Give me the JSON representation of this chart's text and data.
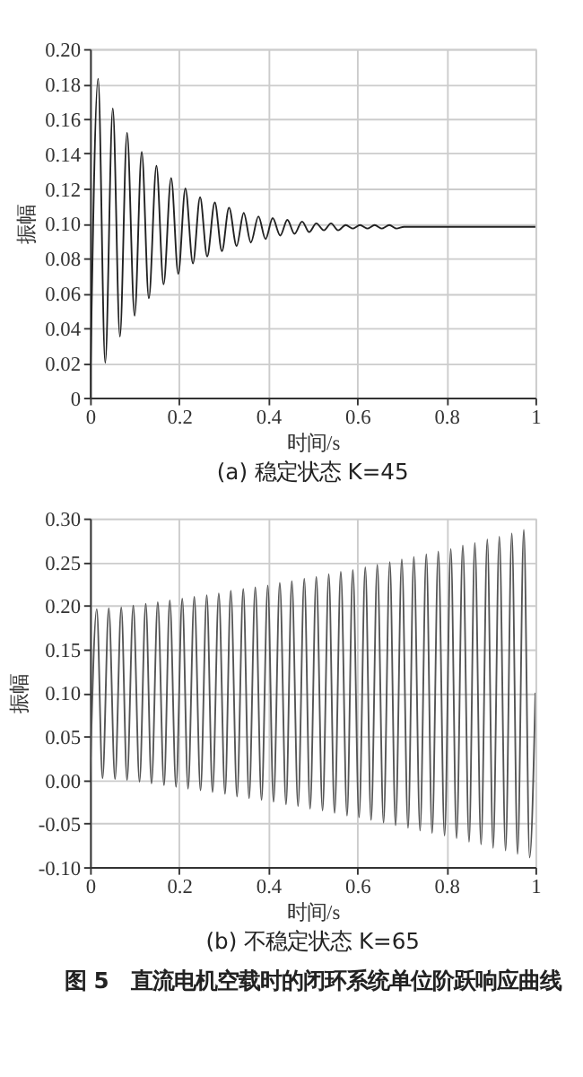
{
  "chart_data": [
    {
      "type": "line",
      "title": "(a) 稳定状态 K=45",
      "xlabel": "时间/s",
      "ylabel": "振幅",
      "grid": true,
      "xlim": [
        0,
        1
      ],
      "xticks": [
        0,
        0.2,
        0.4,
        0.6,
        0.8,
        1
      ],
      "ylim": [
        0,
        0.2
      ],
      "yticks": [
        0,
        0.02,
        0.04,
        0.06,
        0.08,
        {
          "value": 0.1,
          "label": "0.10"
        },
        0.12,
        0.14,
        0.16,
        0.18,
        {
          "value": 0.2,
          "label": "0.20"
        }
      ],
      "series": [
        {
          "color": "#222222",
          "x": [
            0,
            0.018,
            0.034,
            0.051,
            0.067,
            0.083,
            0.1,
            0.116,
            0.132,
            0.149,
            0.165,
            0.182,
            0.198,
            0.214,
            0.231,
            0.247,
            0.263,
            0.28,
            0.296,
            0.312,
            0.329,
            0.345,
            0.361,
            0.378,
            0.394,
            0.41,
            0.427,
            0.443,
            0.459,
            0.476,
            0.492,
            0.508,
            0.525,
            0.541,
            0.557,
            0.574,
            0.59,
            0.606,
            0.623,
            0.639,
            0.655,
            0.672,
            0.688,
            0.705,
            0.721,
            0.737,
            0.753,
            0.77,
            1
          ],
          "values": [
            0,
            0.183,
            0.02,
            0.166,
            0.035,
            0.152,
            0.047,
            0.141,
            0.057,
            0.133,
            0.065,
            0.126,
            0.071,
            0.12,
            0.077,
            0.115,
            0.081,
            0.112,
            0.084,
            0.109,
            0.087,
            0.106,
            0.089,
            0.104,
            0.091,
            0.103,
            0.093,
            0.102,
            0.094,
            0.101,
            0.095,
            0.1,
            0.096,
            0.1,
            0.096,
            0.099,
            0.097,
            0.099,
            0.097,
            0.099,
            0.097,
            0.099,
            0.097,
            0.098,
            0.098,
            0.098,
            0.098,
            0.098,
            0.098
          ]
        }
      ]
    },
    {
      "type": "line",
      "title": "(b) 不稳定状态 K=65",
      "xlabel": "时间/s",
      "ylabel": "振幅",
      "grid": true,
      "annotations": [
        "图 5　直流电机空载时的闭环系统单位阶跃响应曲线"
      ],
      "xlim": [
        0,
        1
      ],
      "xticks": [
        0,
        0.2,
        0.4,
        0.6,
        0.8,
        1
      ],
      "ylim": [
        -0.1,
        0.3
      ],
      "yticks": [
        {
          "value": -0.1,
          "label": "-0.10"
        },
        -0.05,
        {
          "value": 0,
          "label": "0.00"
        },
        0.05,
        {
          "value": 0.1,
          "label": "0.10"
        },
        0.15,
        {
          "value": 0.2,
          "label": "0.20"
        },
        0.25,
        {
          "value": 0.3,
          "label": "0.30"
        }
      ],
      "series": [
        {
          "color": "#555555",
          "x": [
            0,
            0.015,
            0.028,
            0.042,
            0.056,
            0.07,
            0.083,
            0.097,
            0.111,
            0.125,
            0.138,
            0.152,
            0.166,
            0.179,
            0.193,
            0.207,
            0.22,
            0.234,
            0.248,
            0.262,
            0.275,
            0.289,
            0.303,
            0.316,
            0.33,
            0.344,
            0.357,
            0.371,
            0.385,
            0.399,
            0.412,
            0.426,
            0.44,
            0.453,
            0.467,
            0.481,
            0.494,
            0.508,
            0.522,
            0.536,
            0.549,
            0.563,
            0.577,
            0.59,
            0.604,
            0.618,
            0.631,
            0.645,
            0.659,
            0.673,
            0.686,
            0.7,
            0.714,
            0.727,
            0.741,
            0.755,
            0.768,
            0.782,
            0.796,
            0.81,
            0.823,
            0.837,
            0.851,
            0.864,
            0.878,
            0.892,
            0.905,
            0.919,
            0.933,
            0.947,
            0.96,
            0.974,
            0.987,
            1
          ],
          "values": [
            0,
            0.196,
            0.002,
            0.197,
            0.001,
            0.198,
            0.0,
            0.2,
            -0.002,
            0.202,
            -0.004,
            0.204,
            -0.006,
            0.206,
            -0.008,
            0.208,
            -0.01,
            0.21,
            -0.012,
            0.212,
            -0.014,
            0.214,
            -0.016,
            0.217,
            -0.019,
            0.219,
            -0.021,
            0.221,
            -0.023,
            0.223,
            -0.025,
            0.226,
            -0.028,
            0.228,
            -0.03,
            0.231,
            -0.033,
            0.233,
            -0.035,
            0.236,
            -0.038,
            0.239,
            -0.041,
            0.241,
            -0.043,
            0.244,
            -0.046,
            0.247,
            -0.049,
            0.25,
            -0.052,
            0.253,
            -0.055,
            0.256,
            -0.058,
            0.259,
            -0.061,
            0.262,
            -0.064,
            0.265,
            -0.067,
            0.269,
            -0.071,
            0.272,
            -0.074,
            0.276,
            -0.078,
            0.279,
            -0.081,
            0.283,
            -0.085,
            0.287,
            -0.089,
            0.1
          ]
        }
      ]
    }
  ]
}
